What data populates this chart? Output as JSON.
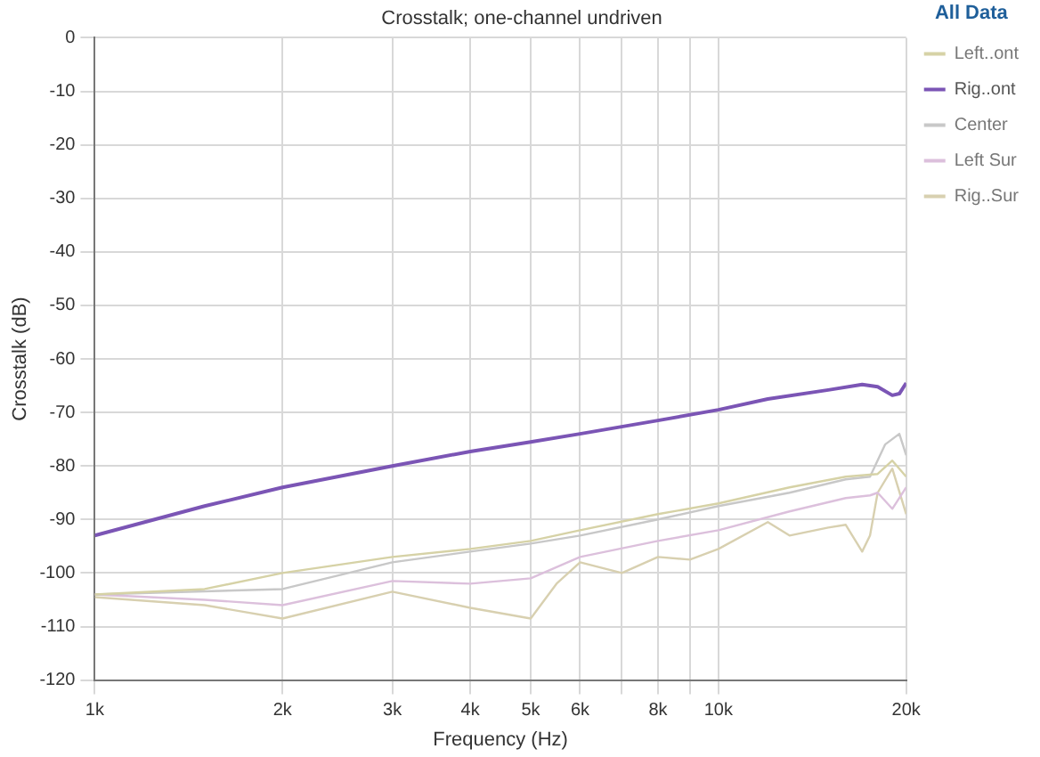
{
  "chart_data": {
    "type": "line",
    "title": "Crosstalk; one-channel undriven",
    "xlabel": "Frequency (Hz)",
    "ylabel": "Crosstalk (dB)",
    "legend_title": "All Data",
    "log": "x",
    "grid": true,
    "legend": "right",
    "marker": "none",
    "line_style": "solid",
    "xlim": [
      1000,
      20000
    ],
    "ylim": [
      -120,
      0
    ],
    "xticks": [
      {
        "value": 1000,
        "label": "1k"
      },
      {
        "value": 2000,
        "label": "2k"
      },
      {
        "value": 3000,
        "label": "3k"
      },
      {
        "value": 4000,
        "label": "4k"
      },
      {
        "value": 5000,
        "label": "5k"
      },
      {
        "value": 6000,
        "label": "6k"
      },
      {
        "value": 7000,
        "label": null
      },
      {
        "value": 8000,
        "label": "8k"
      },
      {
        "value": 9000,
        "label": null
      },
      {
        "value": 10000,
        "label": "10k"
      },
      {
        "value": 20000,
        "label": "20k"
      }
    ],
    "yticks": [
      -120,
      -110,
      -100,
      -90,
      -80,
      -70,
      -60,
      -50,
      -40,
      -30,
      -20,
      -10,
      0
    ],
    "series": [
      {
        "name": "Left..ont",
        "color": "#d6d2a6",
        "x": [
          1000,
          1500,
          2000,
          3000,
          4000,
          5000,
          6000,
          8000,
          10000,
          13000,
          16000,
          18000,
          19000,
          20000
        ],
        "values": [
          -104,
          -103,
          -100,
          -97,
          -95.5,
          -94,
          -92,
          -89,
          -87,
          -84,
          -82,
          -81.5,
          -79,
          -82
        ]
      },
      {
        "name": "Rig..ont",
        "color": "#7b55b5",
        "x": [
          1000,
          1500,
          2000,
          3000,
          4000,
          5000,
          6000,
          8000,
          10000,
          12000,
          15000,
          17000,
          18000,
          19000,
          19500,
          20000
        ],
        "values": [
          -93,
          -87.5,
          -84,
          -80,
          -77.3,
          -75.5,
          -74,
          -71.5,
          -69.5,
          -67.5,
          -65.8,
          -64.8,
          -65.2,
          -66.8,
          -66.5,
          -64.5
        ]
      },
      {
        "name": "Center",
        "color": "#c8c8c8",
        "x": [
          1000,
          2000,
          3000,
          4000,
          5000,
          6000,
          8000,
          10000,
          13000,
          16000,
          17500,
          18500,
          19500,
          20000
        ],
        "values": [
          -104,
          -103,
          -98,
          -96,
          -94.5,
          -93,
          -90,
          -87.5,
          -85,
          -82.5,
          -82,
          -76,
          -74,
          -78
        ]
      },
      {
        "name": "Left Sur",
        "color": "#dcc0dc",
        "x": [
          1000,
          1500,
          2000,
          3000,
          4000,
          5000,
          6000,
          8000,
          10000,
          13000,
          16000,
          17500,
          18000,
          19000,
          20000
        ],
        "values": [
          -104,
          -105,
          -106,
          -101.5,
          -102,
          -101,
          -97,
          -94,
          -92,
          -88.5,
          -86,
          -85.5,
          -85,
          -88,
          -84
        ]
      },
      {
        "name": "Rig..Sur",
        "color": "#d8d0b0",
        "x": [
          1000,
          1500,
          2000,
          3000,
          4000,
          5000,
          5500,
          6000,
          7000,
          8000,
          9000,
          10000,
          12000,
          13000,
          15000,
          16000,
          17000,
          17500,
          18000,
          19000,
          20000
        ],
        "values": [
          -104.5,
          -106,
          -108.5,
          -103.5,
          -106.5,
          -108.5,
          -102,
          -98,
          -100,
          -97,
          -97.5,
          -95.5,
          -90.5,
          -93,
          -91.5,
          -91,
          -96,
          -93,
          -85,
          -80.5,
          -89
        ]
      }
    ]
  }
}
